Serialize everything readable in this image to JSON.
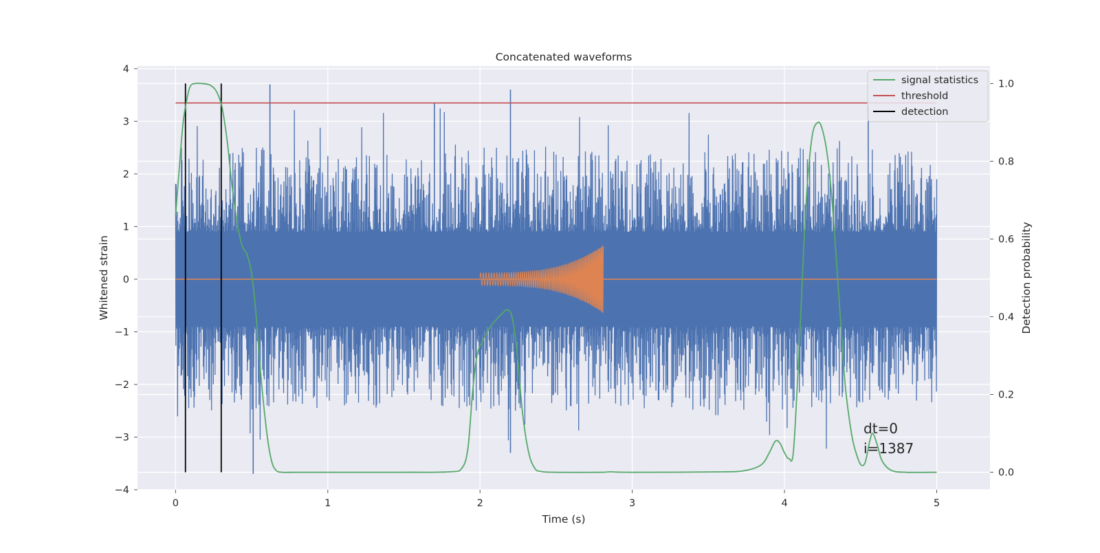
{
  "chart_data": {
    "type": "line",
    "title": "Concatenated waveforms",
    "xlabel": "Time (s)",
    "ylabel_left": "Whitened strain",
    "ylabel_right": "Detection probability",
    "xlim": [
      -0.25,
      5.35
    ],
    "ylim_left": [
      -4.0,
      4.05
    ],
    "ylim_right": [
      -0.045,
      1.045
    ],
    "x_ticks": [
      0,
      1,
      2,
      3,
      4,
      5
    ],
    "x_tick_labels": [
      "0",
      "1",
      "2",
      "3",
      "4",
      "5"
    ],
    "y_left_ticks": [
      -4,
      -3,
      -2,
      -1,
      0,
      1,
      2,
      3,
      4
    ],
    "y_left_tick_labels": [
      "−4",
      "−3",
      "−2",
      "−1",
      "0",
      "1",
      "2",
      "3",
      "4"
    ],
    "y_right_ticks": [
      0.0,
      0.2,
      0.4,
      0.6,
      0.8,
      1.0
    ],
    "y_right_tick_labels": [
      "0.0",
      "0.2",
      "0.4",
      "0.6",
      "0.8",
      "1.0"
    ],
    "grid": true,
    "legend_position": "top-right",
    "legend": [
      {
        "label": "signal statistics",
        "color": "#55a868"
      },
      {
        "label": "threshold",
        "color": "#c44e52"
      },
      {
        "label": "detection",
        "color": "#000000"
      }
    ],
    "annotations": [
      "dt=0",
      "i=1387"
    ],
    "series": [
      {
        "name": "",
        "color": "#4c72b0",
        "axis": "left",
        "description_values": "whitened noise strain",
        "x_range": [
          0,
          5
        ],
        "core_amplitude": 0.72,
        "spike_max": 3.7,
        "spike_min": -3.7,
        "notable_spikes": [
          {
            "x": 0.62,
            "y": 3.7
          },
          {
            "x": 1.7,
            "y": 3.35
          },
          {
            "x": 2.2,
            "y": 3.6
          },
          {
            "x": 0.51,
            "y": -3.7
          },
          {
            "x": 2.2,
            "y": -3.3
          },
          {
            "x": 4.55,
            "y": 3.3
          }
        ]
      },
      {
        "name": "",
        "color": "#dd8452",
        "axis": "left",
        "description_values": "injected chirp",
        "chirp_start": 2.0,
        "chirp_end": 2.81,
        "amp_start": 0.12,
        "amp_end": 0.65
      },
      {
        "name": "threshold",
        "color": "#c44e52",
        "axis": "right",
        "x": [
          0,
          5
        ],
        "values": [
          0.95,
          0.95
        ]
      },
      {
        "name": "signal statistics",
        "color": "#55a868",
        "axis": "right",
        "x": [
          0.0,
          0.02,
          0.05,
          0.08,
          0.1,
          0.13,
          0.17,
          0.22,
          0.26,
          0.29,
          0.31,
          0.34,
          0.37,
          0.41,
          0.44,
          0.47,
          0.5,
          0.53,
          0.56,
          0.6,
          0.63,
          0.66,
          0.7,
          0.8,
          1.0,
          1.5,
          1.8,
          1.88,
          1.92,
          1.95,
          1.98,
          2.02,
          2.06,
          2.1,
          2.15,
          2.18,
          2.21,
          2.24,
          2.28,
          2.32,
          2.36,
          2.4,
          2.5,
          2.8,
          2.85,
          3.0,
          3.6,
          3.75,
          3.85,
          3.9,
          3.94,
          3.97,
          4.0,
          4.03,
          4.06,
          4.1,
          4.14,
          4.18,
          4.22,
          4.25,
          4.28,
          4.31,
          4.34,
          4.37,
          4.4,
          4.44,
          4.47,
          4.5,
          4.53,
          4.56,
          4.58,
          4.61,
          4.64,
          4.7,
          4.8,
          5.0
        ],
        "values": [
          0.66,
          0.76,
          0.9,
          0.97,
          0.995,
          1.0,
          1.0,
          0.997,
          0.985,
          0.96,
          0.93,
          0.85,
          0.74,
          0.63,
          0.58,
          0.56,
          0.51,
          0.4,
          0.25,
          0.1,
          0.03,
          0.005,
          0.0,
          0.0,
          0.0,
          0.0,
          0.001,
          0.01,
          0.06,
          0.2,
          0.3,
          0.34,
          0.37,
          0.39,
          0.41,
          0.418,
          0.4,
          0.32,
          0.15,
          0.05,
          0.01,
          0.002,
          0.0,
          0.0,
          0.001,
          0.0,
          0.001,
          0.005,
          0.02,
          0.05,
          0.08,
          0.075,
          0.05,
          0.035,
          0.06,
          0.35,
          0.68,
          0.86,
          0.9,
          0.88,
          0.82,
          0.71,
          0.55,
          0.38,
          0.22,
          0.1,
          0.05,
          0.02,
          0.025,
          0.08,
          0.1,
          0.07,
          0.03,
          0.005,
          0.0,
          0.0
        ]
      },
      {
        "name": "detection",
        "color": "#000000",
        "axis": "right",
        "x": [
          0.065,
          0.3
        ],
        "values": [
          0.0,
          1.0
        ]
      }
    ]
  }
}
